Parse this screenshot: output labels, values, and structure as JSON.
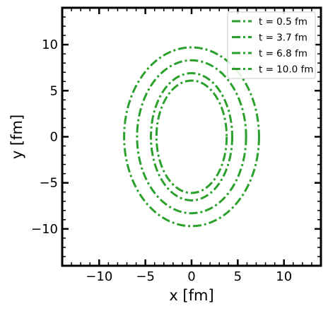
{
  "chart_data": {
    "type": "line",
    "title": "",
    "xlabel": "x [fm]",
    "ylabel": "y [fm]",
    "xlim": [
      -14,
      14
    ],
    "ylim": [
      -14,
      14
    ],
    "xticks": [
      -10,
      -5,
      0,
      5,
      10
    ],
    "yticks": [
      -10,
      -5,
      0,
      5,
      10
    ],
    "xtick_labels": [
      "−10",
      "−5",
      "0",
      "5",
      "10"
    ],
    "ytick_labels": [
      "−10",
      "−5",
      "0",
      "5",
      "10"
    ],
    "grid": false,
    "legend_position": "top-right",
    "line_style": "dash-dot",
    "color": "#2ca02c",
    "series": [
      {
        "name": "t = 0.5 fm",
        "shape": "ellipse",
        "center": [
          0,
          0
        ],
        "semi_axis_x": 3.8,
        "semi_axis_y": 6.1
      },
      {
        "name": "t = 3.7 fm",
        "shape": "ellipse",
        "center": [
          0,
          0
        ],
        "semi_axis_x": 4.4,
        "semi_axis_y": 6.9
      },
      {
        "name": "t = 6.8 fm",
        "shape": "ellipse",
        "center": [
          0,
          0
        ],
        "semi_axis_x": 5.9,
        "semi_axis_y": 8.3
      },
      {
        "name": "t = 10.0 fm",
        "shape": "ellipse",
        "center": [
          0,
          0
        ],
        "semi_axis_x": 7.3,
        "semi_axis_y": 9.7
      }
    ]
  }
}
